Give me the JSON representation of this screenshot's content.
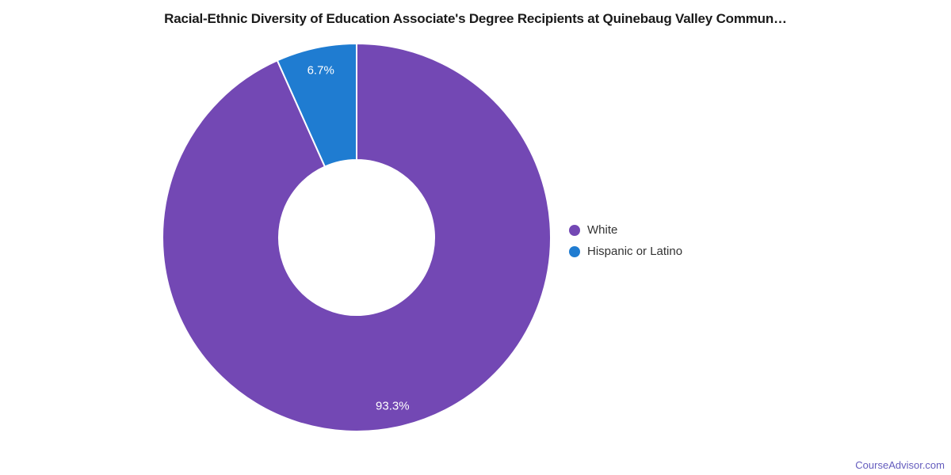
{
  "chart_data": {
    "type": "pie",
    "donut": true,
    "title": "Racial-Ethnic Diversity of Education Associate's Degree Recipients at Quinebaug Valley Commun…",
    "categories": [
      "White",
      "Hispanic or Latino"
    ],
    "values": [
      93.3,
      6.7
    ],
    "value_labels": [
      "93.3%",
      "6.7%"
    ],
    "unit": "%",
    "colors": [
      "#7348b4",
      "#1f7cd1"
    ],
    "slice_label_color": "#ffffff",
    "slice_border_color": "#ffffff",
    "start_angle_deg": 0,
    "direction": "clockwise",
    "inner_radius_ratio": 0.4,
    "legend_position": "right",
    "legend": [
      {
        "label": "White",
        "color": "#7348b4"
      },
      {
        "label": "Hispanic or Latino",
        "color": "#1f7cd1"
      }
    ]
  },
  "watermark": {
    "label": "CourseAdvisor.com",
    "color": "#645cbe"
  }
}
